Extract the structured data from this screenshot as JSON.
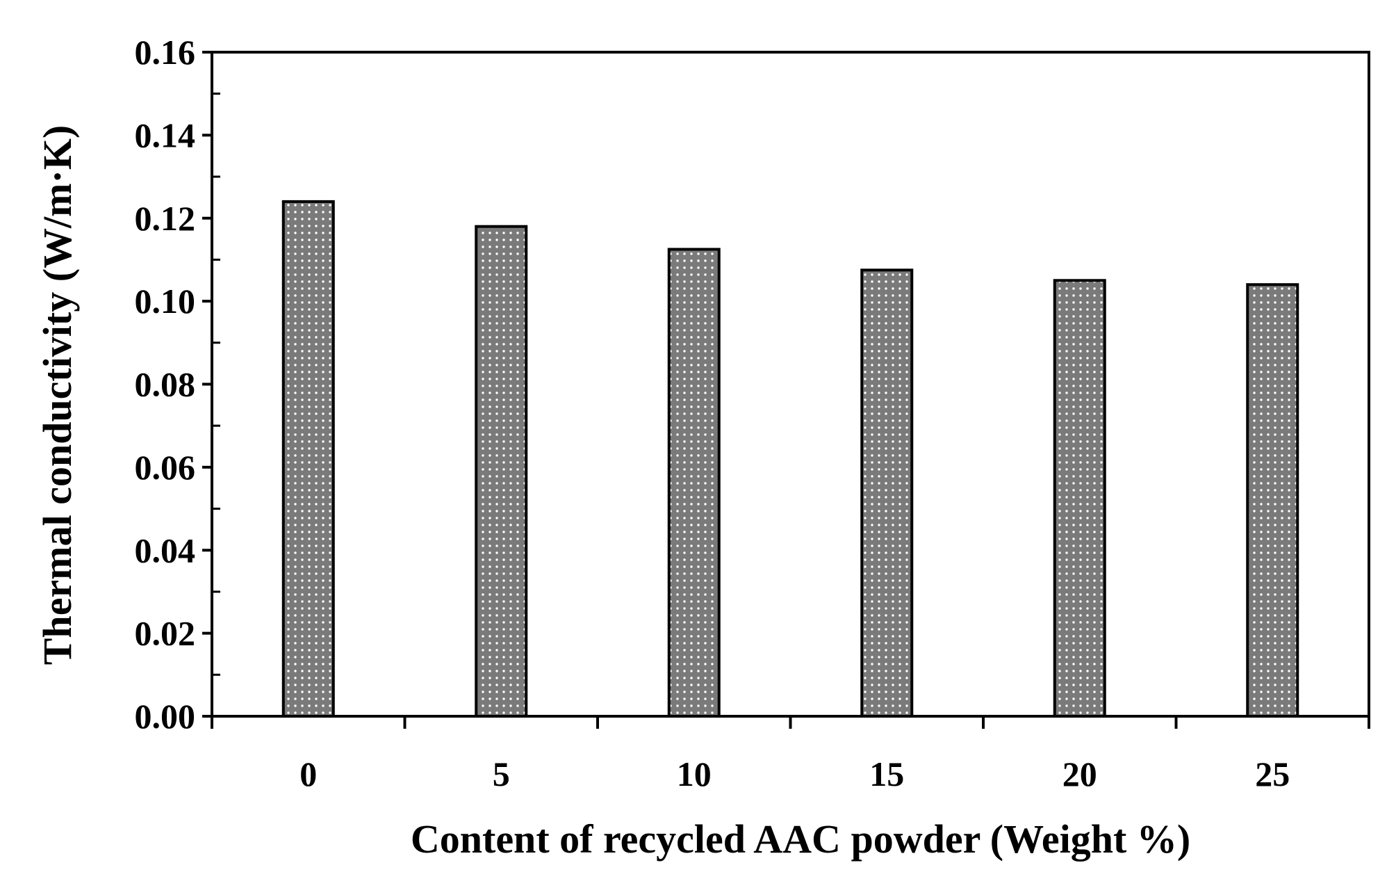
{
  "chart_data": {
    "type": "bar",
    "categories": [
      "0",
      "5",
      "10",
      "15",
      "20",
      "25"
    ],
    "values": [
      0.124,
      0.118,
      0.1125,
      0.1075,
      0.105,
      0.104
    ],
    "title": "",
    "xlabel": "Content of recycled AAC powder (Weight %)",
    "ylabel": "Thermal conductivity (W/m·K)",
    "ylim": [
      0,
      0.16
    ],
    "yticks": [
      "0.00",
      "0.02",
      "0.04",
      "0.06",
      "0.08",
      "0.10",
      "0.12",
      "0.14",
      "0.16"
    ],
    "grid": false,
    "legend": "none",
    "colors": {
      "bar_fill": "#7a7a7a",
      "bar_dots": "#ffffff",
      "bar_edge": "#000000",
      "axis": "#000000"
    }
  }
}
